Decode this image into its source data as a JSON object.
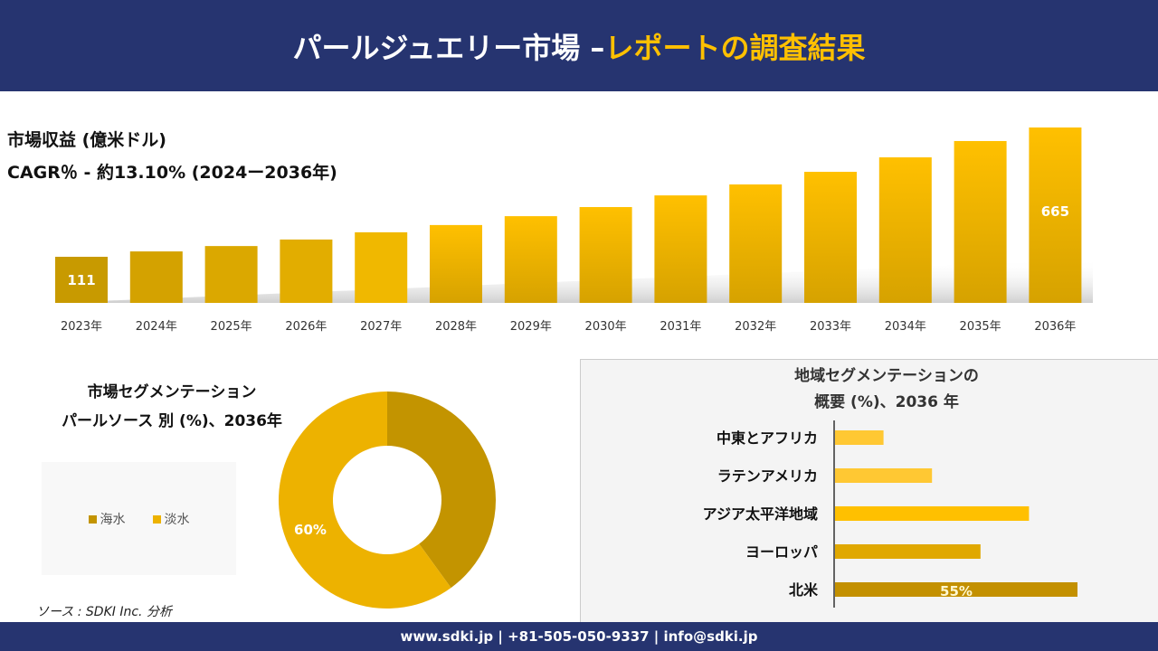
{
  "header": {
    "title_main": "パールジュエリー市場 –",
    "title_highlight": "レポートの調査結果"
  },
  "revenue": {
    "label": "市場収益 (億米ドル)",
    "cagr": "CAGR％ - 約13.10% (2024ー2036年)"
  },
  "chart_data": [
    {
      "type": "bar",
      "categories": [
        "2023年",
        "2024年",
        "2025年",
        "2026年",
        "2027年",
        "2028年",
        "2029年",
        "2030年",
        "2031年",
        "2032年",
        "2033年",
        "2034年",
        "2035年",
        "2036年"
      ],
      "values": [
        111,
        134,
        157,
        185,
        216,
        247,
        285,
        324,
        374,
        421,
        475,
        537,
        607,
        665
      ],
      "data_labels": {
        "0": "111",
        "13": "665"
      },
      "title": "市場収益 (億米ドル)",
      "colors": [
        "#C89A00",
        "#D4A200",
        "#DBA800",
        "#E2AD00",
        "#F0B800",
        "#FFC000",
        "#FFC000",
        "#FFC000",
        "#FFC000",
        "#FFC000",
        "#FFC000",
        "#FFC000",
        "#FFC000",
        "#FFC000"
      ]
    },
    {
      "type": "pie",
      "title": "市場セグメンテーション パールソース 別 (%)、2036年",
      "categories": [
        "海水",
        "淡水"
      ],
      "values": [
        40,
        60
      ],
      "data_labels": {
        "1": "60%"
      },
      "colors": [
        "#C39400",
        "#EDB200"
      ],
      "legend": "left"
    },
    {
      "type": "bar",
      "orientation": "horizontal",
      "title": "地域セグメンテーションの 概要 (%)、2036 年",
      "categories": [
        "中東とアフリカ",
        "ラテンアメリカ",
        "アジア太平洋地域",
        "ヨーロッパ",
        "北米"
      ],
      "values": [
        11,
        22,
        44,
        33,
        55
      ],
      "data_labels": {
        "4": "55%"
      },
      "colors": [
        "#FFC833",
        "#FFC833",
        "#FFC000",
        "#E0A800",
        "#C39000"
      ]
    }
  ],
  "segment": {
    "title_line1": "市場セグメンテーション",
    "title_line2": "パールソース 別 (%)、2036年"
  },
  "region": {
    "title_line1": "地域セグメンテーションの",
    "title_line2": "概要 (%)、2036 年"
  },
  "source": "ソース : SDKI Inc. 分析",
  "footer": "www.sdki.jp | +81-505-050-9337 | info@sdki.jp"
}
